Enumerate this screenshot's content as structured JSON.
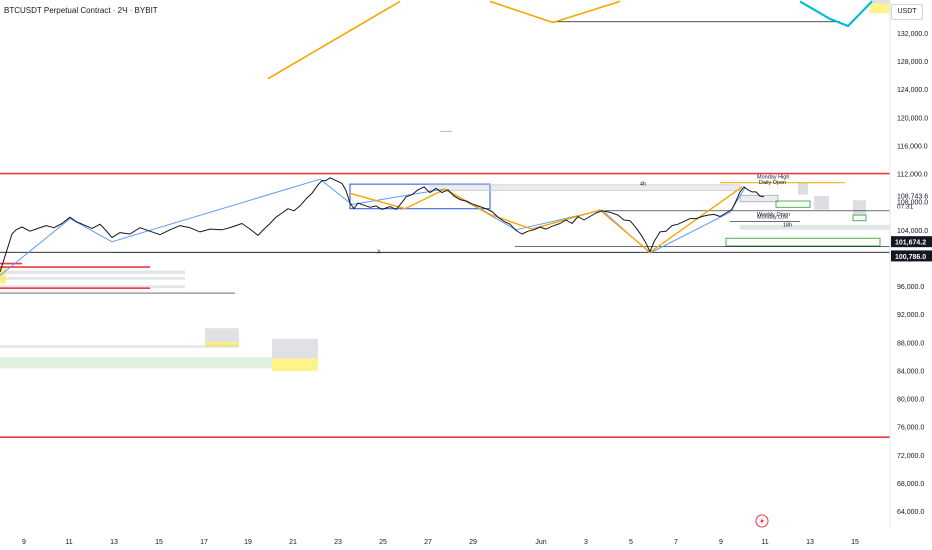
{
  "header": {
    "title": "BTCUSDT Perpetual Contract · 2Ч · BYBIT"
  },
  "controls": {
    "unit": "USDT"
  },
  "chart_data": {
    "type": "line",
    "ylim": [
      62000,
      136000
    ],
    "price_ticks": [
      "132,000.0",
      "128,000.0",
      "124,000.0",
      "120,000.0",
      "116,000.0",
      "112,000.0",
      "108,000.0",
      "104,000.0",
      "100,000.0",
      "96,000.0",
      "92,000.0",
      "88,000.0",
      "84,000.0",
      "80,000.0",
      "76,000.0",
      "72,000.0",
      "68,000.0",
      "64,000.0"
    ],
    "date_ticks": [
      "9",
      "11",
      "13",
      "15",
      "17",
      "19",
      "21",
      "23",
      "25",
      "27",
      "29",
      "Jun",
      "3",
      "5",
      "7",
      "9",
      "11",
      "13",
      "15"
    ],
    "current_price": "108,743.6",
    "countdown": "07:31",
    "price_badges": [
      "101,674.2",
      "100,786.0"
    ],
    "annotations": [
      "4h",
      "Monday High",
      "Daily Open",
      "Weekly Open",
      "Monday Low",
      "18h",
      "X"
    ],
    "price_series": [
      [
        0,
        98000
      ],
      [
        4,
        99800
      ],
      [
        8,
        101600
      ],
      [
        12,
        103400
      ],
      [
        16,
        104000
      ],
      [
        22,
        104400
      ],
      [
        30,
        103800
      ],
      [
        38,
        104200
      ],
      [
        46,
        104600
      ],
      [
        54,
        104300
      ],
      [
        62,
        104900
      ],
      [
        70,
        105800
      ],
      [
        76,
        105200
      ],
      [
        84,
        104700
      ],
      [
        92,
        104200
      ],
      [
        100,
        104800
      ],
      [
        106,
        103900
      ],
      [
        112,
        102900
      ],
      [
        120,
        103600
      ],
      [
        130,
        103400
      ],
      [
        140,
        104300
      ],
      [
        150,
        103800
      ],
      [
        160,
        103300
      ],
      [
        170,
        104000
      ],
      [
        180,
        104600
      ],
      [
        190,
        104300
      ],
      [
        200,
        103700
      ],
      [
        210,
        104100
      ],
      [
        222,
        104000
      ],
      [
        232,
        104400
      ],
      [
        242,
        104900
      ],
      [
        250,
        104100
      ],
      [
        258,
        103200
      ],
      [
        264,
        104100
      ],
      [
        270,
        104900
      ],
      [
        276,
        105800
      ],
      [
        282,
        106400
      ],
      [
        288,
        107000
      ],
      [
        294,
        106700
      ],
      [
        300,
        107400
      ],
      [
        306,
        108400
      ],
      [
        312,
        109200
      ],
      [
        318,
        110400
      ],
      [
        322,
        111000
      ],
      [
        326,
        111000
      ],
      [
        330,
        111400
      ],
      [
        336,
        111000
      ],
      [
        342,
        110600
      ],
      [
        346,
        109600
      ],
      [
        350,
        107800
      ],
      [
        354,
        107000
      ],
      [
        358,
        107800
      ],
      [
        364,
        107500
      ],
      [
        370,
        107200
      ],
      [
        376,
        107400
      ],
      [
        382,
        106900
      ],
      [
        390,
        107300
      ],
      [
        396,
        106900
      ],
      [
        402,
        107900
      ],
      [
        406,
        108700
      ],
      [
        412,
        109000
      ],
      [
        418,
        109700
      ],
      [
        424,
        110100
      ],
      [
        430,
        109300
      ],
      [
        436,
        109900
      ],
      [
        442,
        109300
      ],
      [
        448,
        109700
      ],
      [
        454,
        108800
      ],
      [
        460,
        108300
      ],
      [
        466,
        108100
      ],
      [
        472,
        107700
      ],
      [
        480,
        107300
      ],
      [
        486,
        107000
      ],
      [
        492,
        106600
      ],
      [
        498,
        105800
      ],
      [
        504,
        105200
      ],
      [
        510,
        104800
      ],
      [
        516,
        103900
      ],
      [
        522,
        103400
      ],
      [
        528,
        103800
      ],
      [
        534,
        104000
      ],
      [
        540,
        104400
      ],
      [
        546,
        104100
      ],
      [
        552,
        104500
      ],
      [
        560,
        104900
      ],
      [
        566,
        105400
      ],
      [
        572,
        104900
      ],
      [
        578,
        105900
      ],
      [
        584,
        105400
      ],
      [
        590,
        105900
      ],
      [
        596,
        106400
      ],
      [
        602,
        106700
      ],
      [
        610,
        106500
      ],
      [
        618,
        106100
      ],
      [
        624,
        105400
      ],
      [
        630,
        105300
      ],
      [
        636,
        104300
      ],
      [
        642,
        103100
      ],
      [
        646,
        102100
      ],
      [
        650,
        100900
      ],
      [
        654,
        102300
      ],
      [
        660,
        103700
      ],
      [
        666,
        103800
      ],
      [
        672,
        104600
      ],
      [
        678,
        104800
      ],
      [
        684,
        105200
      ],
      [
        690,
        105600
      ],
      [
        696,
        105600
      ],
      [
        702,
        105900
      ],
      [
        708,
        106100
      ],
      [
        714,
        106200
      ],
      [
        720,
        105900
      ],
      [
        726,
        106400
      ],
      [
        732,
        106900
      ],
      [
        736,
        108100
      ],
      [
        740,
        109400
      ],
      [
        744,
        110100
      ],
      [
        748,
        109700
      ],
      [
        752,
        109400
      ],
      [
        756,
        109400
      ],
      [
        760,
        108800
      ],
      [
        764,
        108700
      ]
    ],
    "zigzag_blue": [
      [
        0,
        97500
      ],
      [
        70,
        105600
      ],
      [
        112,
        102300
      ],
      [
        320,
        111200
      ],
      [
        352,
        107600
      ],
      [
        444,
        109800
      ],
      [
        516,
        104000
      ],
      [
        602,
        106800
      ],
      [
        650,
        100700
      ],
      [
        730,
        106500
      ],
      [
        745,
        110000
      ]
    ],
    "zigzag_orange_lower": [
      [
        350,
        109200
      ],
      [
        405,
        107000
      ],
      [
        445,
        109800
      ],
      [
        490,
        106200
      ],
      [
        532,
        104100
      ],
      [
        600,
        106800
      ],
      [
        650,
        100800
      ],
      [
        742,
        110100
      ]
    ],
    "zigzag_orange_upper": [
      [
        268,
        125500
      ],
      [
        400,
        136500
      ]
    ],
    "zigzag_orange_upper2": [
      [
        490,
        136500
      ],
      [
        553,
        133500
      ],
      [
        620,
        136500
      ]
    ],
    "zigzag_cyan": [
      [
        800,
        136500
      ],
      [
        830,
        134000
      ],
      [
        848,
        133000
      ],
      [
        872,
        136500
      ]
    ],
    "h_lines": [
      {
        "price": 112000,
        "x1": 0,
        "x2": 890,
        "color": "#f23645",
        "width": 1.6
      },
      {
        "price": 74500,
        "x1": 0,
        "x2": 890,
        "color": "#f23645",
        "width": 1.6
      },
      {
        "price": 100800,
        "x1": 0,
        "x2": 890,
        "color": "#131722",
        "width": 0.8
      },
      {
        "price": 100800,
        "x1": 110,
        "x2": 640,
        "color": "#131722",
        "width": 0.6
      },
      {
        "price": 101600,
        "x1": 515,
        "x2": 890,
        "color": "#131722",
        "width": 0.6
      },
      {
        "price": 95000,
        "x1": 0,
        "x2": 235,
        "color": "#131722",
        "width": 0.6
      },
      {
        "price": 110700,
        "x1": 720,
        "x2": 845,
        "color": "#f7a600",
        "width": 1
      },
      {
        "price": 106700,
        "x1": 605,
        "x2": 890,
        "color": "#131722",
        "width": 0.6
      },
      {
        "price": 105200,
        "x1": 730,
        "x2": 800,
        "color": "#131722",
        "width": 0.6
      },
      {
        "price": 133600,
        "x1": 553,
        "x2": 840,
        "color": "#131722",
        "width": 0.8
      },
      {
        "price": 118000,
        "x1": 440,
        "x2": 452,
        "color": "#b2b5be",
        "width": 1
      }
    ],
    "red_short": [
      {
        "price": 98700,
        "x1": 0,
        "x2": 150
      },
      {
        "price": 95700,
        "x1": 0,
        "x2": 150
      },
      {
        "price": 99200,
        "x1": 0,
        "x2": 22
      }
    ],
    "zones": [
      {
        "x1": 350,
        "x2": 490,
        "p1": 110500,
        "p2": 107000,
        "stroke": "#1e53e5",
        "fill": "none"
      },
      {
        "x1": 430,
        "x2": 740,
        "p1": 110400,
        "p2": 109600,
        "stroke": "#d1d4dc",
        "fill": "rgba(178,181,190,0.25)"
      },
      {
        "x1": 0,
        "x2": 185,
        "p1": 98200,
        "p2": 97700,
        "stroke": "none",
        "fill": "rgba(178,181,190,0.35)"
      },
      {
        "x1": 0,
        "x2": 185,
        "p1": 97300,
        "p2": 96900,
        "stroke": "none",
        "fill": "rgba(178,181,190,0.35)"
      },
      {
        "x1": 0,
        "x2": 185,
        "p1": 96100,
        "p2": 95700,
        "stroke": "none",
        "fill": "rgba(178,181,190,0.35)"
      },
      {
        "x1": 0,
        "x2": 6,
        "p1": 98700,
        "p2": 96300,
        "stroke": "none",
        "fill": "rgba(255,235,59,0.6)"
      },
      {
        "x1": 205,
        "x2": 239,
        "p1": 90000,
        "p2": 88000,
        "stroke": "none",
        "fill": "rgba(178,181,190,0.4)"
      },
      {
        "x1": 205,
        "x2": 239,
        "p1": 88000,
        "p2": 87400,
        "stroke": "none",
        "fill": "rgba(255,235,59,0.7)"
      },
      {
        "x1": 0,
        "x2": 239,
        "p1": 87600,
        "p2": 87200,
        "stroke": "none",
        "fill": "rgba(178,181,190,0.3)"
      },
      {
        "x1": 272,
        "x2": 318,
        "p1": 88500,
        "p2": 85700,
        "stroke": "none",
        "fill": "rgba(178,181,190,0.4)"
      },
      {
        "x1": 272,
        "x2": 318,
        "p1": 85700,
        "p2": 83900,
        "stroke": "none",
        "fill": "rgba(255,235,59,0.6)"
      },
      {
        "x1": 0,
        "x2": 272,
        "p1": 85900,
        "p2": 84300,
        "stroke": "none",
        "fill": "rgba(76,175,80,0.18)"
      },
      {
        "x1": 740,
        "x2": 778,
        "p1": 108900,
        "p2": 108000,
        "stroke": "#b2b5be",
        "fill": "rgba(178,181,190,0.25)"
      },
      {
        "x1": 776,
        "x2": 810,
        "p1": 108100,
        "p2": 107200,
        "stroke": "#4caf50",
        "fill": "none"
      },
      {
        "x1": 726,
        "x2": 880,
        "p1": 102800,
        "p2": 101700,
        "stroke": "#4caf50",
        "fill": "none"
      },
      {
        "x1": 740,
        "x2": 890,
        "p1": 104700,
        "p2": 104000,
        "stroke": "none",
        "fill": "rgba(178,181,190,0.35)"
      },
      {
        "x1": 798,
        "x2": 808,
        "p1": 110800,
        "p2": 109000,
        "stroke": "none",
        "fill": "rgba(178,181,190,0.45)"
      },
      {
        "x1": 814,
        "x2": 829,
        "p1": 108800,
        "p2": 106900,
        "stroke": "none",
        "fill": "rgba(178,181,190,0.45)"
      },
      {
        "x1": 853,
        "x2": 866,
        "p1": 108200,
        "p2": 106100,
        "stroke": "none",
        "fill": "rgba(178,181,190,0.45)"
      },
      {
        "x1": 853,
        "x2": 866,
        "p1": 106100,
        "p2": 105300,
        "stroke": "#4caf50",
        "fill": "rgba(255,255,255,0.6)"
      },
      {
        "x1": 870,
        "x2": 890,
        "p1": 136200,
        "p2": 134800,
        "stroke": "none",
        "fill": "rgba(255,235,59,0.6)"
      },
      {
        "x1": 870,
        "x2": 890,
        "p1": 137000,
        "p2": 136200,
        "stroke": "none",
        "fill": "rgba(178,181,190,0.4)"
      }
    ]
  }
}
